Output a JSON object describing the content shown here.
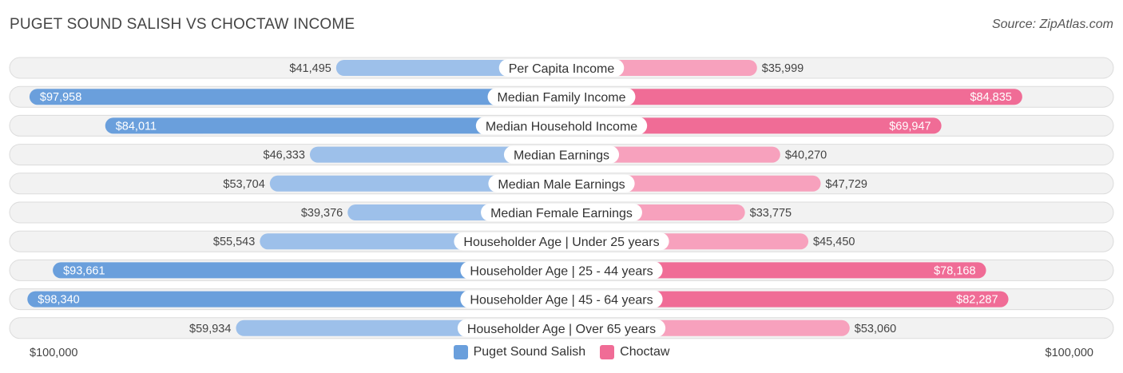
{
  "header": {
    "title": "PUGET SOUND SALISH VS CHOCTAW INCOME",
    "source": "Source: ZipAtlas.com"
  },
  "colors": {
    "left_strong": "#6a9fdc",
    "left_light": "#9dc0ea",
    "right_strong": "#f06c96",
    "right_light": "#f7a1bd"
  },
  "legend": {
    "left": "Puget Sound Salish",
    "right": "Choctaw"
  },
  "axis": {
    "left_label": "$100,000",
    "right_label": "$100,000"
  },
  "chart_data": {
    "type": "bar",
    "orientation": "horizontal-diverging",
    "title": "PUGET SOUND SALISH VS CHOCTAW INCOME",
    "xlim": [
      0,
      100000
    ],
    "categories": [
      "Per Capita Income",
      "Median Family Income",
      "Median Household Income",
      "Median Earnings",
      "Median Male Earnings",
      "Median Female Earnings",
      "Householder Age | Under 25 years",
      "Householder Age | 25 - 44 years",
      "Householder Age | 45 - 64 years",
      "Householder Age | Over 65 years"
    ],
    "series": [
      {
        "name": "Puget Sound Salish",
        "side": "left",
        "values": [
          41495,
          97958,
          84011,
          46333,
          53704,
          39376,
          55543,
          93661,
          98340,
          59934
        ],
        "labels": [
          "$41,495",
          "$97,958",
          "$84,011",
          "$46,333",
          "$53,704",
          "$39,376",
          "$55,543",
          "$93,661",
          "$98,340",
          "$59,934"
        ]
      },
      {
        "name": "Choctaw",
        "side": "right",
        "values": [
          35999,
          84835,
          69947,
          40270,
          47729,
          33775,
          45450,
          78168,
          82287,
          53060
        ],
        "labels": [
          "$35,999",
          "$84,835",
          "$69,947",
          "$40,270",
          "$47,729",
          "$33,775",
          "$45,450",
          "$78,168",
          "$82,287",
          "$53,060"
        ]
      }
    ]
  }
}
